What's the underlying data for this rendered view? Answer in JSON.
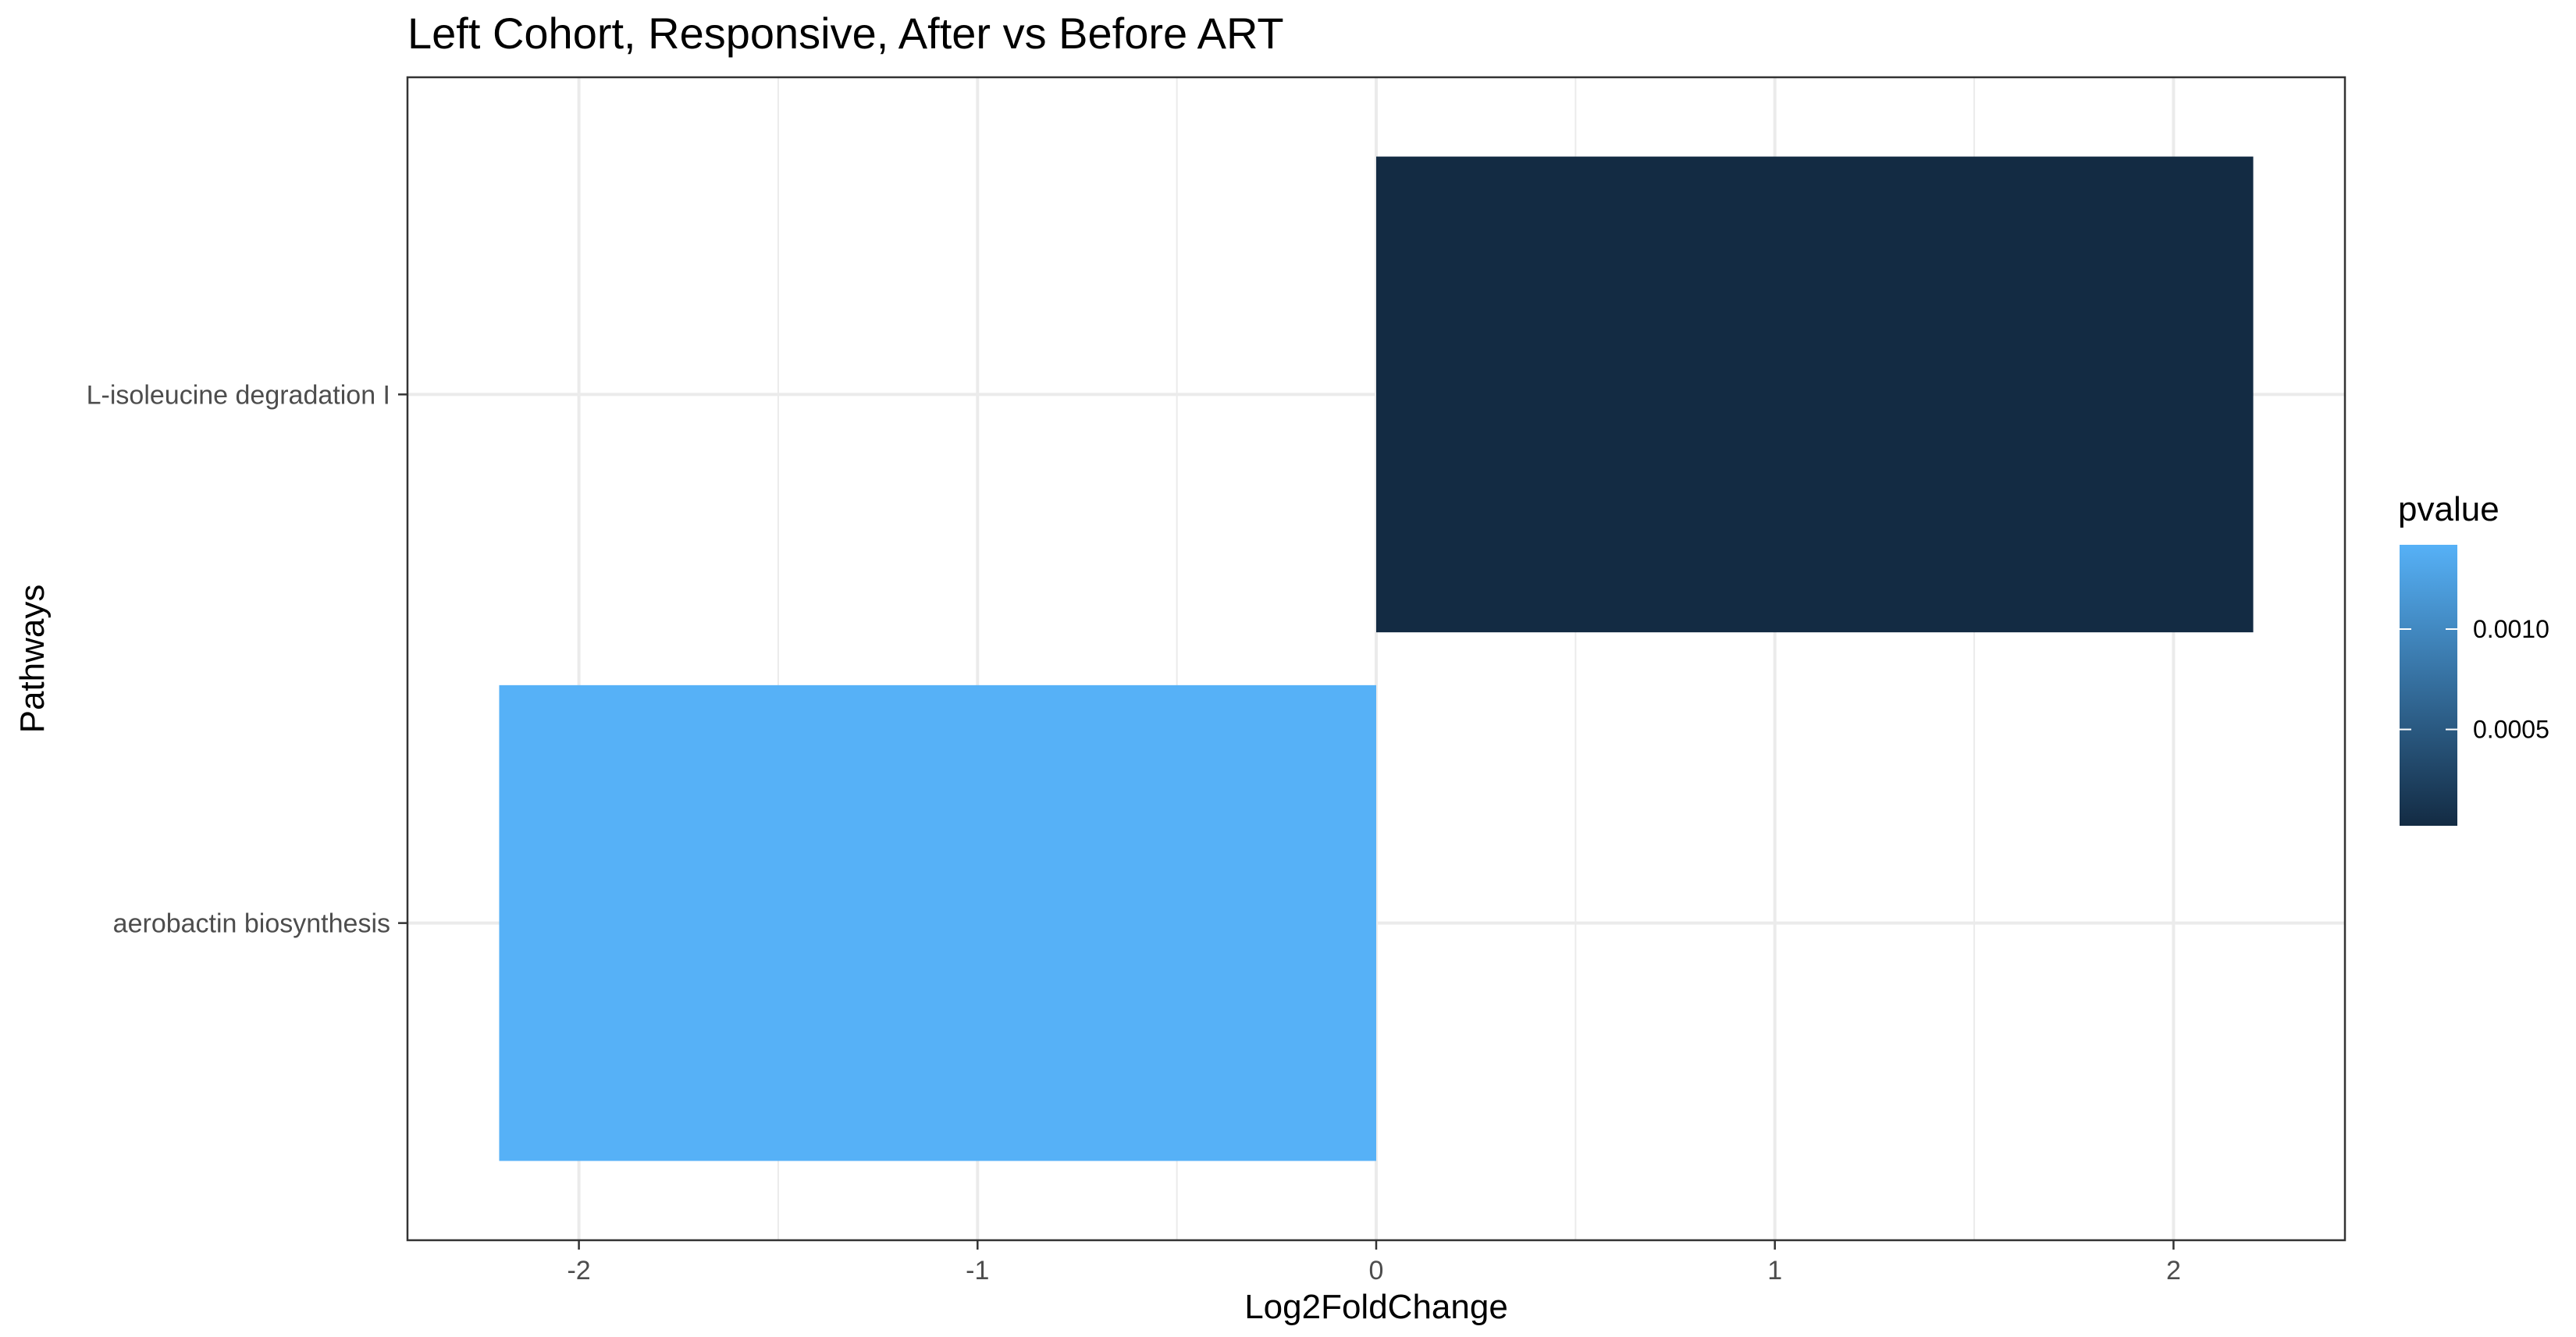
{
  "chart_data": {
    "type": "bar",
    "orientation": "horizontal",
    "title": "Left Cohort, Responsive, After vs Before ART",
    "xlabel": "Log2FoldChange",
    "ylabel": "Pathways",
    "categories": [
      "aerobactin biosynthesis",
      "L-isoleucine degradation I"
    ],
    "values": [
      -2.2,
      2.2
    ],
    "pvalues": [
      0.00142,
      2e-05
    ],
    "xlim": [
      -2.43,
      2.43
    ],
    "xticks": [
      -2,
      -1,
      0,
      1,
      2
    ],
    "xtick_labels": [
      "-2",
      "-1",
      "0",
      "1",
      "2"
    ],
    "grid": true,
    "legend": {
      "title": "pvalue",
      "placement": "right",
      "type": "colorbar",
      "range": [
        2e-05,
        0.00142
      ],
      "ticks": [
        0.0005,
        0.001
      ],
      "tick_labels": [
        "0.0005",
        "0.0010"
      ],
      "color_low": "#132B43",
      "color_high": "#56B1F7"
    }
  }
}
